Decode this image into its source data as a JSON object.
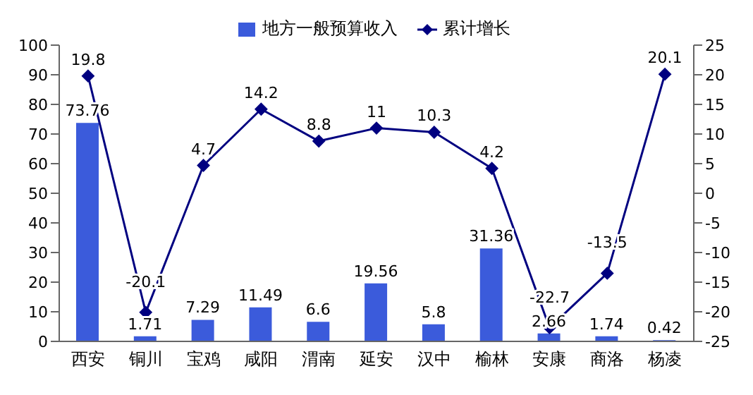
{
  "chart_data": {
    "type": "bar",
    "categories": [
      "西安",
      "铜川",
      "宝鸡",
      "咸阳",
      "渭南",
      "延安",
      "汉中",
      "榆林",
      "安康",
      "商洛",
      "杨凌"
    ],
    "series": [
      {
        "name": "地方一般预算收入",
        "color": "#3b5bdb",
        "values": [
          73.76,
          1.71,
          7.29,
          11.49,
          6.6,
          19.56,
          5.8,
          31.36,
          2.66,
          1.74,
          0.42
        ]
      },
      {
        "name": "累计增长",
        "type": "line",
        "axis": "y2",
        "color": "#000080",
        "marker": "diamond",
        "values": [
          19.8,
          -20.1,
          4.7,
          14.2,
          8.8,
          11,
          10.3,
          4.2,
          -22.7,
          -13.5,
          20.1
        ]
      }
    ],
    "ylim": [
      0,
      100
    ],
    "yticks": [
      0,
      10,
      20,
      30,
      40,
      50,
      60,
      70,
      80,
      90,
      100
    ],
    "y2lim": [
      -25,
      25
    ],
    "y2ticks": [
      -25,
      -20,
      -15,
      -10,
      -5,
      0,
      5,
      10,
      15,
      20,
      25
    ],
    "data_labels": true,
    "legend": "top"
  }
}
